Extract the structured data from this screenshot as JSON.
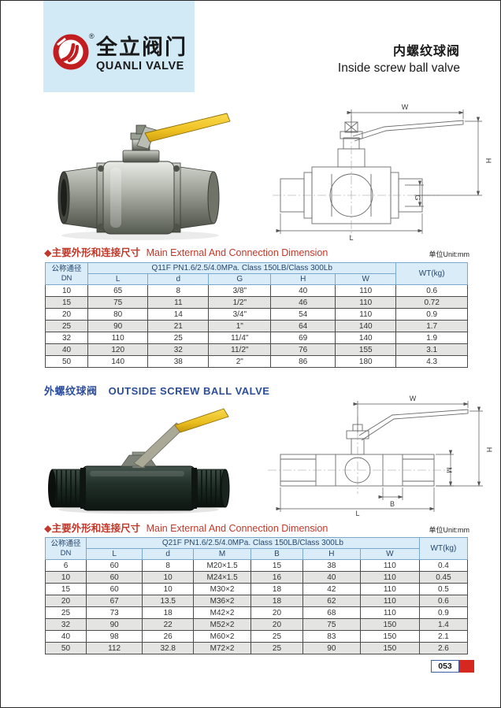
{
  "brand": {
    "name_cn": "全立阀门",
    "name_en": "QUANLI VALVE",
    "reg": "®"
  },
  "header": {
    "title_cn": "内螺纹球阀",
    "title_en": "Inside screw ball valve"
  },
  "section1": {
    "title_cn": "◆主要外形和连接尺寸",
    "title_en": "Main External And Connection Dimension",
    "unit": "单位Unit:mm",
    "table": {
      "dn_line1": "公称通径",
      "dn_line2": "DN",
      "spec": "Q11F  PN1.6/2.5/4.0MPa. Class 150LB/Class 300Lb",
      "wt": "WT(kg)",
      "columns": [
        "L",
        "d",
        "G",
        "H",
        "W"
      ],
      "rows": [
        [
          "10",
          "65",
          "8",
          "3/8\"",
          "40",
          "110",
          "0.6"
        ],
        [
          "15",
          "75",
          "11",
          "1/2\"",
          "46",
          "110",
          "0.72"
        ],
        [
          "20",
          "80",
          "14",
          "3/4\"",
          "54",
          "110",
          "0.9"
        ],
        [
          "25",
          "90",
          "21",
          "1\"",
          "64",
          "140",
          "1.7"
        ],
        [
          "32",
          "110",
          "25",
          "11/4\"",
          "69",
          "140",
          "1.9"
        ],
        [
          "40",
          "120",
          "32",
          "11/2\"",
          "76",
          "155",
          "3.1"
        ],
        [
          "50",
          "140",
          "38",
          "2\"",
          "86",
          "180",
          "4.3"
        ]
      ]
    }
  },
  "section2_heading": {
    "cn": "外螺纹球阀",
    "en": "OUTSIDE SCREW BALL VALVE"
  },
  "section2": {
    "title_cn": "◆主要外形和连接尺寸",
    "title_en": "Main External And Connection Dimension",
    "unit": "单位Unit:mm",
    "table": {
      "dn_line1": "公称通径",
      "dn_line2": "DN",
      "spec": "Q21F  PN1.6/2.5/4.0MPa. Class 150LB/Class 300Lb",
      "wt": "WT(kg)",
      "columns": [
        "L",
        "d",
        "M",
        "B",
        "H",
        "W"
      ],
      "rows": [
        [
          "6",
          "60",
          "8",
          "M20×1.5",
          "15",
          "38",
          "110",
          "0.4"
        ],
        [
          "10",
          "60",
          "10",
          "M24×1.5",
          "16",
          "40",
          "110",
          "0.45"
        ],
        [
          "15",
          "60",
          "10",
          "M30×2",
          "18",
          "42",
          "110",
          "0.5"
        ],
        [
          "20",
          "67",
          "13.5",
          "M36×2",
          "18",
          "62",
          "110",
          "0.6"
        ],
        [
          "25",
          "73",
          "18",
          "M42×2",
          "20",
          "68",
          "110",
          "0.9"
        ],
        [
          "32",
          "90",
          "22",
          "M52×2",
          "20",
          "75",
          "150",
          "1.4"
        ],
        [
          "40",
          "98",
          "26",
          "M60×2",
          "25",
          "83",
          "150",
          "2.1"
        ],
        [
          "50",
          "112",
          "32.8",
          "M72×2",
          "25",
          "90",
          "150",
          "2.6"
        ]
      ]
    }
  },
  "drawing1": {
    "labels": {
      "W": "W",
      "H": "H",
      "G": "G",
      "L": "L"
    }
  },
  "drawing2": {
    "labels": {
      "W": "W",
      "H": "H",
      "M": "M",
      "B": "B",
      "L": "L"
    }
  },
  "footer": {
    "page_number": "053"
  },
  "colors": {
    "logo_red": "#c21d20",
    "logo_bg": "#d2e9f6",
    "title_red": "#c0392b",
    "title_blue": "#2b4d9b",
    "table_header_bg": "#d9ecf8",
    "row_alt": "#e4e4e2",
    "handle_yellow": "#f0c425",
    "footer_red": "#d6281e"
  }
}
